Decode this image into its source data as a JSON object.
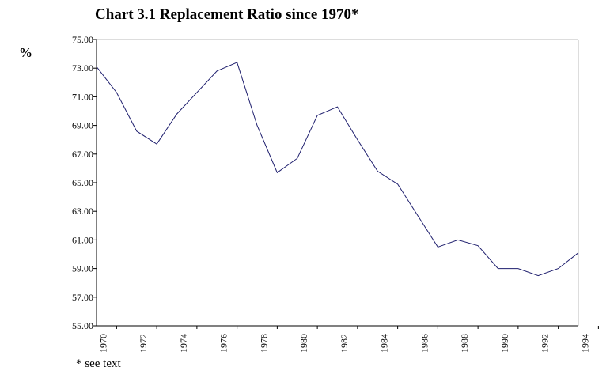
{
  "chart_data": {
    "type": "line",
    "title": "Chart 3.1 Replacement Ratio since 1970*",
    "y_label": "%",
    "note": "* see text",
    "x": [
      1969,
      1970,
      1971,
      1972,
      1973,
      1974,
      1975,
      1976,
      1977,
      1978,
      1979,
      1980,
      1981,
      1982,
      1983,
      1984,
      1985,
      1986,
      1987,
      1988,
      1989,
      1990,
      1991,
      1992,
      1993
    ],
    "series": [
      {
        "color": "#1f1f6e",
        "values": [
          73.1,
          71.3,
          68.6,
          67.7,
          69.8,
          71.3,
          72.8,
          73.4,
          69.0,
          65.7,
          66.7,
          69.7,
          70.3,
          68.0,
          65.8,
          64.9,
          62.7,
          60.5,
          61.0,
          60.6,
          59.0,
          59.0,
          58.5,
          59.0,
          60.1
        ]
      }
    ],
    "xlim": [
      1969,
      1993
    ],
    "xticks": [
      1970,
      1972,
      1974,
      1976,
      1978,
      1980,
      1982,
      1984,
      1986,
      1988,
      1990,
      1992,
      1994
    ],
    "ylim": [
      55,
      75
    ],
    "yticks": [
      {
        "value": 55,
        "label": "55.00"
      },
      {
        "value": 57,
        "label": "57.00"
      },
      {
        "value": 59,
        "label": "59.00"
      },
      {
        "value": 61,
        "label": "61.00"
      },
      {
        "value": 63,
        "label": "63.00"
      },
      {
        "value": 65,
        "label": "65.00"
      },
      {
        "value": 67,
        "label": "67.00"
      },
      {
        "value": 69,
        "label": "69.00"
      },
      {
        "value": 71,
        "label": "71.00"
      },
      {
        "value": 73,
        "label": "73.00"
      },
      {
        "value": 75,
        "label": "75.00"
      }
    ],
    "grid": false
  }
}
